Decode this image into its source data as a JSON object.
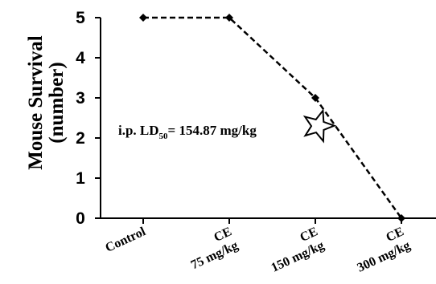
{
  "chart_data": {
    "type": "line",
    "categories": [
      "Control",
      "CE 75 mg/kg",
      "CE 150 mg/kg",
      "CE 300 mg/kg"
    ],
    "category_labels": [
      [
        "Control"
      ],
      [
        "CE",
        "75 mg/kg"
      ],
      [
        "CE",
        "150 mg/kg"
      ],
      [
        "CE",
        "300 mg/kg"
      ]
    ],
    "series": [
      {
        "values": [
          5,
          5,
          3,
          0
        ],
        "color": "#000000",
        "line_style": "dashed",
        "marker": "diamond"
      }
    ],
    "ylabel_lines": [
      "Mouse Survival",
      "(number)"
    ],
    "xlabel": "",
    "title": "",
    "ylim": [
      0,
      5
    ],
    "yticks": [
      "0",
      "1",
      "2",
      "3",
      "4",
      "5"
    ],
    "grid": false,
    "annotation": {
      "prefix": "i.p. LD",
      "subscript": "50",
      "suffix": "= 154.87 mg/kg",
      "marker": "star",
      "value_x_mgkg": 154.87,
      "value_y": 2.3
    }
  }
}
